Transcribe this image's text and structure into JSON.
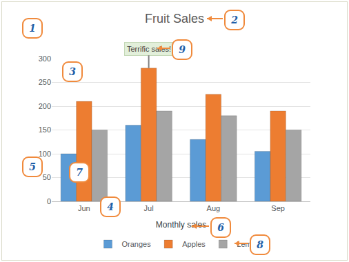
{
  "chart_data": {
    "type": "bar",
    "title": "Fruit Sales",
    "categories": [
      "Jun",
      "Jul",
      "Aug",
      "Sep"
    ],
    "series": [
      {
        "name": "Oranges",
        "color": "#5b9bd5",
        "values": [
          100,
          160,
          130,
          105
        ]
      },
      {
        "name": "Apples",
        "color": "#ed7d31",
        "values": [
          210,
          280,
          225,
          190
        ]
      },
      {
        "name": "Lemons",
        "color": "#a5a5a5",
        "values": [
          150,
          190,
          180,
          150
        ]
      }
    ],
    "x_label": "Monthly sales",
    "ylim": [
      0,
      300
    ],
    "yticks": [
      0,
      50,
      100,
      150,
      200,
      250,
      300
    ],
    "grid": true,
    "legend": "bottom",
    "annotations": [
      {
        "text": "Terrific sales!",
        "category": "Jul",
        "series": "Apples"
      }
    ],
    "callouts": [
      "1",
      "2",
      "3",
      "4",
      "5",
      "6",
      "7",
      "8",
      "9"
    ]
  }
}
